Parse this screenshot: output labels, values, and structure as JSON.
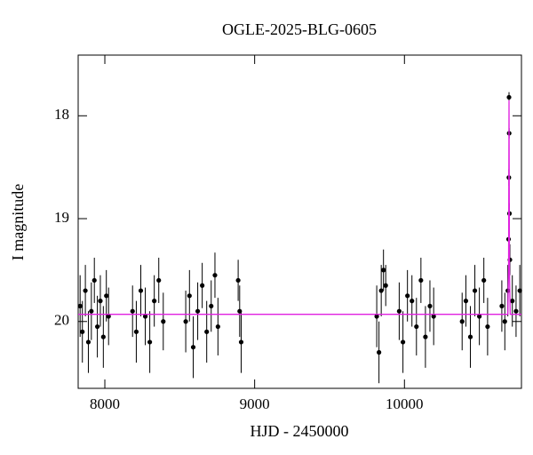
{
  "chart_data": {
    "type": "scatter",
    "title": "OGLE-2025-BLG-0605",
    "x_label": "HJD - 2450000",
    "y_label": "I magnitude",
    "xlim": [
      7822,
      10781
    ],
    "ylim": [
      20.65,
      17.41
    ],
    "xticks": [
      8000,
      9000,
      10000
    ],
    "yticks": [
      18,
      19,
      20
    ],
    "series": [
      {
        "style": "points",
        "color": "#000000",
        "x": [
          7835,
          7850,
          7870,
          7890,
          7910,
          7930,
          7950,
          7970,
          7990,
          8010,
          8025,
          8185,
          8210,
          8240,
          8270,
          8300,
          8330,
          8360,
          8390,
          8540,
          8565,
          8590,
          8620,
          8650,
          8680,
          8710,
          8735,
          8755,
          8890,
          8900,
          8910,
          9815,
          9830,
          9845,
          9860,
          9875,
          9965,
          9990,
          10020,
          10050,
          10080,
          10110,
          10140,
          10170,
          10195,
          10385,
          10410,
          10440,
          10470,
          10500,
          10530,
          10555,
          10650,
          10670,
          10690,
          10695,
          10697,
          10698,
          10699,
          10701,
          10704,
          10720,
          10745,
          10770
        ],
        "values": [
          19.85,
          20.1,
          19.7,
          20.2,
          19.9,
          19.6,
          20.05,
          19.8,
          20.15,
          19.75,
          19.95,
          19.9,
          20.1,
          19.7,
          19.95,
          20.2,
          19.8,
          19.6,
          20.0,
          20.0,
          19.75,
          20.25,
          19.9,
          19.65,
          20.1,
          19.85,
          19.55,
          20.05,
          19.6,
          19.9,
          20.2,
          19.95,
          20.3,
          19.7,
          19.5,
          19.65,
          19.9,
          20.2,
          19.75,
          19.8,
          20.05,
          19.6,
          20.15,
          19.85,
          19.95,
          20.0,
          19.8,
          20.15,
          19.7,
          19.95,
          19.6,
          20.05,
          19.85,
          20.0,
          19.7,
          19.2,
          18.6,
          17.82,
          18.17,
          18.95,
          19.4,
          19.8,
          19.9,
          19.7
        ],
        "errors": [
          0.3,
          0.3,
          0.25,
          0.3,
          0.28,
          0.22,
          0.3,
          0.25,
          0.3,
          0.25,
          0.28,
          0.25,
          0.3,
          0.25,
          0.28,
          0.3,
          0.25,
          0.22,
          0.28,
          0.3,
          0.25,
          0.3,
          0.28,
          0.22,
          0.3,
          0.25,
          0.22,
          0.28,
          0.2,
          0.25,
          0.3,
          0.3,
          0.3,
          0.25,
          0.2,
          0.2,
          0.28,
          0.3,
          0.25,
          0.25,
          0.28,
          0.22,
          0.3,
          0.25,
          0.28,
          0.28,
          0.25,
          0.3,
          0.25,
          0.28,
          0.22,
          0.28,
          0.25,
          0.28,
          0.25,
          0.15,
          0.08,
          0.05,
          0.05,
          0.1,
          0.15,
          0.25,
          0.25,
          0.25
        ]
      },
      {
        "style": "line",
        "color": "#e020e0",
        "x": [
          7822,
          10690,
          10695,
          10698,
          10701,
          10706,
          10781
        ],
        "values": [
          19.93,
          19.93,
          19.5,
          17.85,
          19.5,
          19.93,
          19.93
        ]
      }
    ]
  }
}
